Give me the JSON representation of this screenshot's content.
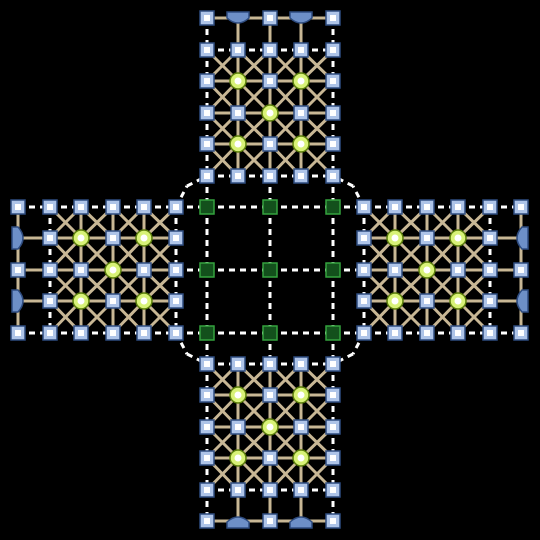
{
  "board": {
    "type": "cross-shaped-grid-board",
    "arms": [
      "top",
      "left",
      "right",
      "bottom"
    ],
    "arm_grid": {
      "cols": 5,
      "rows": 6
    },
    "center_grid": {
      "cols": 3,
      "rows": 3
    },
    "colors": {
      "background": "#000000",
      "line": "#c8b795",
      "dash": "#ffffff",
      "node_fill": "#aec4e8",
      "node_stroke": "#2e4c80",
      "node_inner": "#ffffff",
      "ring_fill": "#d8f277",
      "ring_stroke": "#5a7d0a",
      "ring_inner": "#ffffff",
      "center_node_fill": "#13501c",
      "center_node_stroke": "#34a23e",
      "cap_fill": "#6d8fc7",
      "cap_stroke": "#2e4c80"
    }
  }
}
